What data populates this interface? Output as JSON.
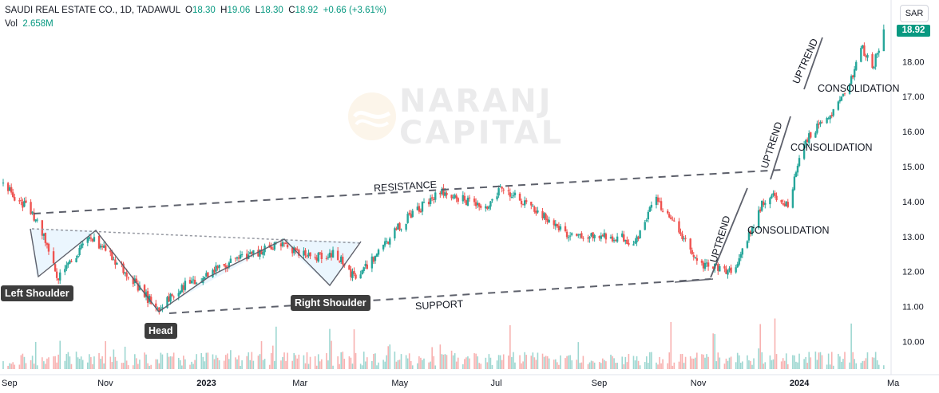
{
  "header": {
    "symbol": "SAUDI REAL ESTATE CO., 1D, TADAWUL",
    "o_label": "O",
    "o_value": "18.30",
    "h_label": "H",
    "h_value": "19.06",
    "l_label": "L",
    "l_value": "18.30",
    "c_label": "C",
    "c_value": "18.92",
    "change": "+0.66 (+3.61%)",
    "vol_label": "Vol",
    "vol_value": "2.658M"
  },
  "currency_button": "SAR",
  "last_price_label": "18.92",
  "watermark": {
    "line1": "NARANJ",
    "line2": "CAPITAL"
  },
  "colors": {
    "up": "#26a69a",
    "down": "#ef5350",
    "price_tag": "#089981",
    "pattern_fill": "#e3f2fd"
  },
  "chart_data": {
    "type": "candlestick",
    "y_axis": {
      "min": 10,
      "max": 19,
      "ticks": [
        "10.00",
        "11.00",
        "12.00",
        "13.00",
        "14.00",
        "15.00",
        "16.00",
        "17.00",
        "18.00"
      ]
    },
    "x_axis": {
      "range": [
        "2022-09-01",
        "2024-03-01"
      ],
      "tick_labels": [
        "Sep",
        "Nov",
        "2023",
        "Mar",
        "May",
        "Jul",
        "Sep",
        "Nov",
        "2024",
        "Ma"
      ]
    },
    "anchors": [
      [
        "2022-09-01",
        14.5
      ],
      [
        "2022-09-22",
        13.5
      ],
      [
        "2022-10-05",
        11.8
      ],
      [
        "2022-10-25",
        13.0
      ],
      [
        "2022-11-12",
        12.2
      ],
      [
        "2022-12-05",
        10.9
      ],
      [
        "2022-12-22",
        11.6
      ],
      [
        "2023-01-25",
        12.4
      ],
      [
        "2023-02-20",
        12.8
      ],
      [
        "2023-03-08",
        12.4
      ],
      [
        "2023-03-25",
        12.5
      ],
      [
        "2023-04-06",
        11.8
      ],
      [
        "2023-05-05",
        13.4
      ],
      [
        "2023-05-28",
        14.3
      ],
      [
        "2023-06-25",
        13.8
      ],
      [
        "2023-07-05",
        14.4
      ],
      [
        "2023-08-01",
        13.6
      ],
      [
        "2023-08-15",
        13.0
      ],
      [
        "2023-09-15",
        13.0
      ],
      [
        "2023-09-25",
        12.8
      ],
      [
        "2023-10-07",
        14.1
      ],
      [
        "2023-11-05",
        12.2
      ],
      [
        "2023-11-25",
        12.0
      ],
      [
        "2023-12-12",
        13.9
      ],
      [
        "2023-12-22",
        14.2
      ],
      [
        "2023-12-28",
        13.8
      ],
      [
        "2024-01-05",
        15.5
      ],
      [
        "2024-01-16",
        16.2
      ],
      [
        "2024-01-25",
        16.5
      ],
      [
        "2024-02-03",
        17.3
      ],
      [
        "2024-02-12",
        18.4
      ],
      [
        "2024-02-18",
        17.8
      ],
      [
        "2024-02-25",
        18.92
      ]
    ],
    "annotations": {
      "resistance": "RESISTANCE",
      "support": "SUPPORT",
      "left_shoulder": "Left Shoulder",
      "head": "Head",
      "right_shoulder": "Right Shoulder",
      "uptrend_1": "UPTREND",
      "uptrend_2": "UPTREND",
      "uptrend_3": "UPTREND",
      "consolidation_1": "CONSOLIDATION",
      "consolidation_2": "CONSOLIDATION",
      "consolidation_3": "CONSOLIDATION"
    }
  }
}
